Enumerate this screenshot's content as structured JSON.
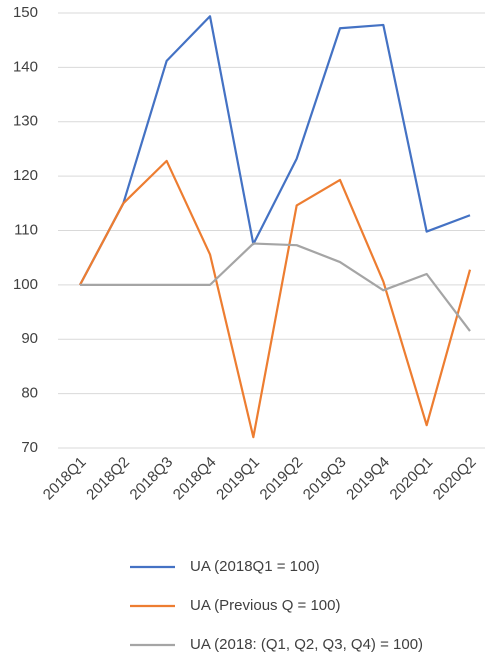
{
  "chart_data": {
    "type": "line",
    "categories": [
      "2018Q1",
      "2018Q2",
      "2018Q3",
      "2018Q4",
      "2019Q1",
      "2019Q2",
      "2019Q3",
      "2019Q4",
      "2020Q1",
      "2020Q2"
    ],
    "series": [
      {
        "name": "UA (2018Q1 = 100)",
        "color": "#4472c4",
        "values": [
          100,
          115,
          141.2,
          149.4,
          107.5,
          123.2,
          147.2,
          147.8,
          109.8,
          112.8
        ]
      },
      {
        "name": "UA (Previous Q = 100)",
        "color": "#ed7d31",
        "values": [
          100,
          115,
          122.8,
          105.6,
          72,
          114.6,
          119.3,
          100.6,
          74.2,
          102.8
        ]
      },
      {
        "name": "UA (2018: (Q1, Q2, Q3, Q4) = 100)",
        "color": "#a5a5a5",
        "values": [
          100,
          100,
          100,
          100,
          107.6,
          107.3,
          104.2,
          99,
          102,
          91.5
        ]
      }
    ],
    "ylim": [
      70,
      150
    ],
    "yticks": [
      70,
      80,
      90,
      100,
      110,
      120,
      130,
      140,
      150
    ],
    "grid": true,
    "legend": "bottom"
  }
}
